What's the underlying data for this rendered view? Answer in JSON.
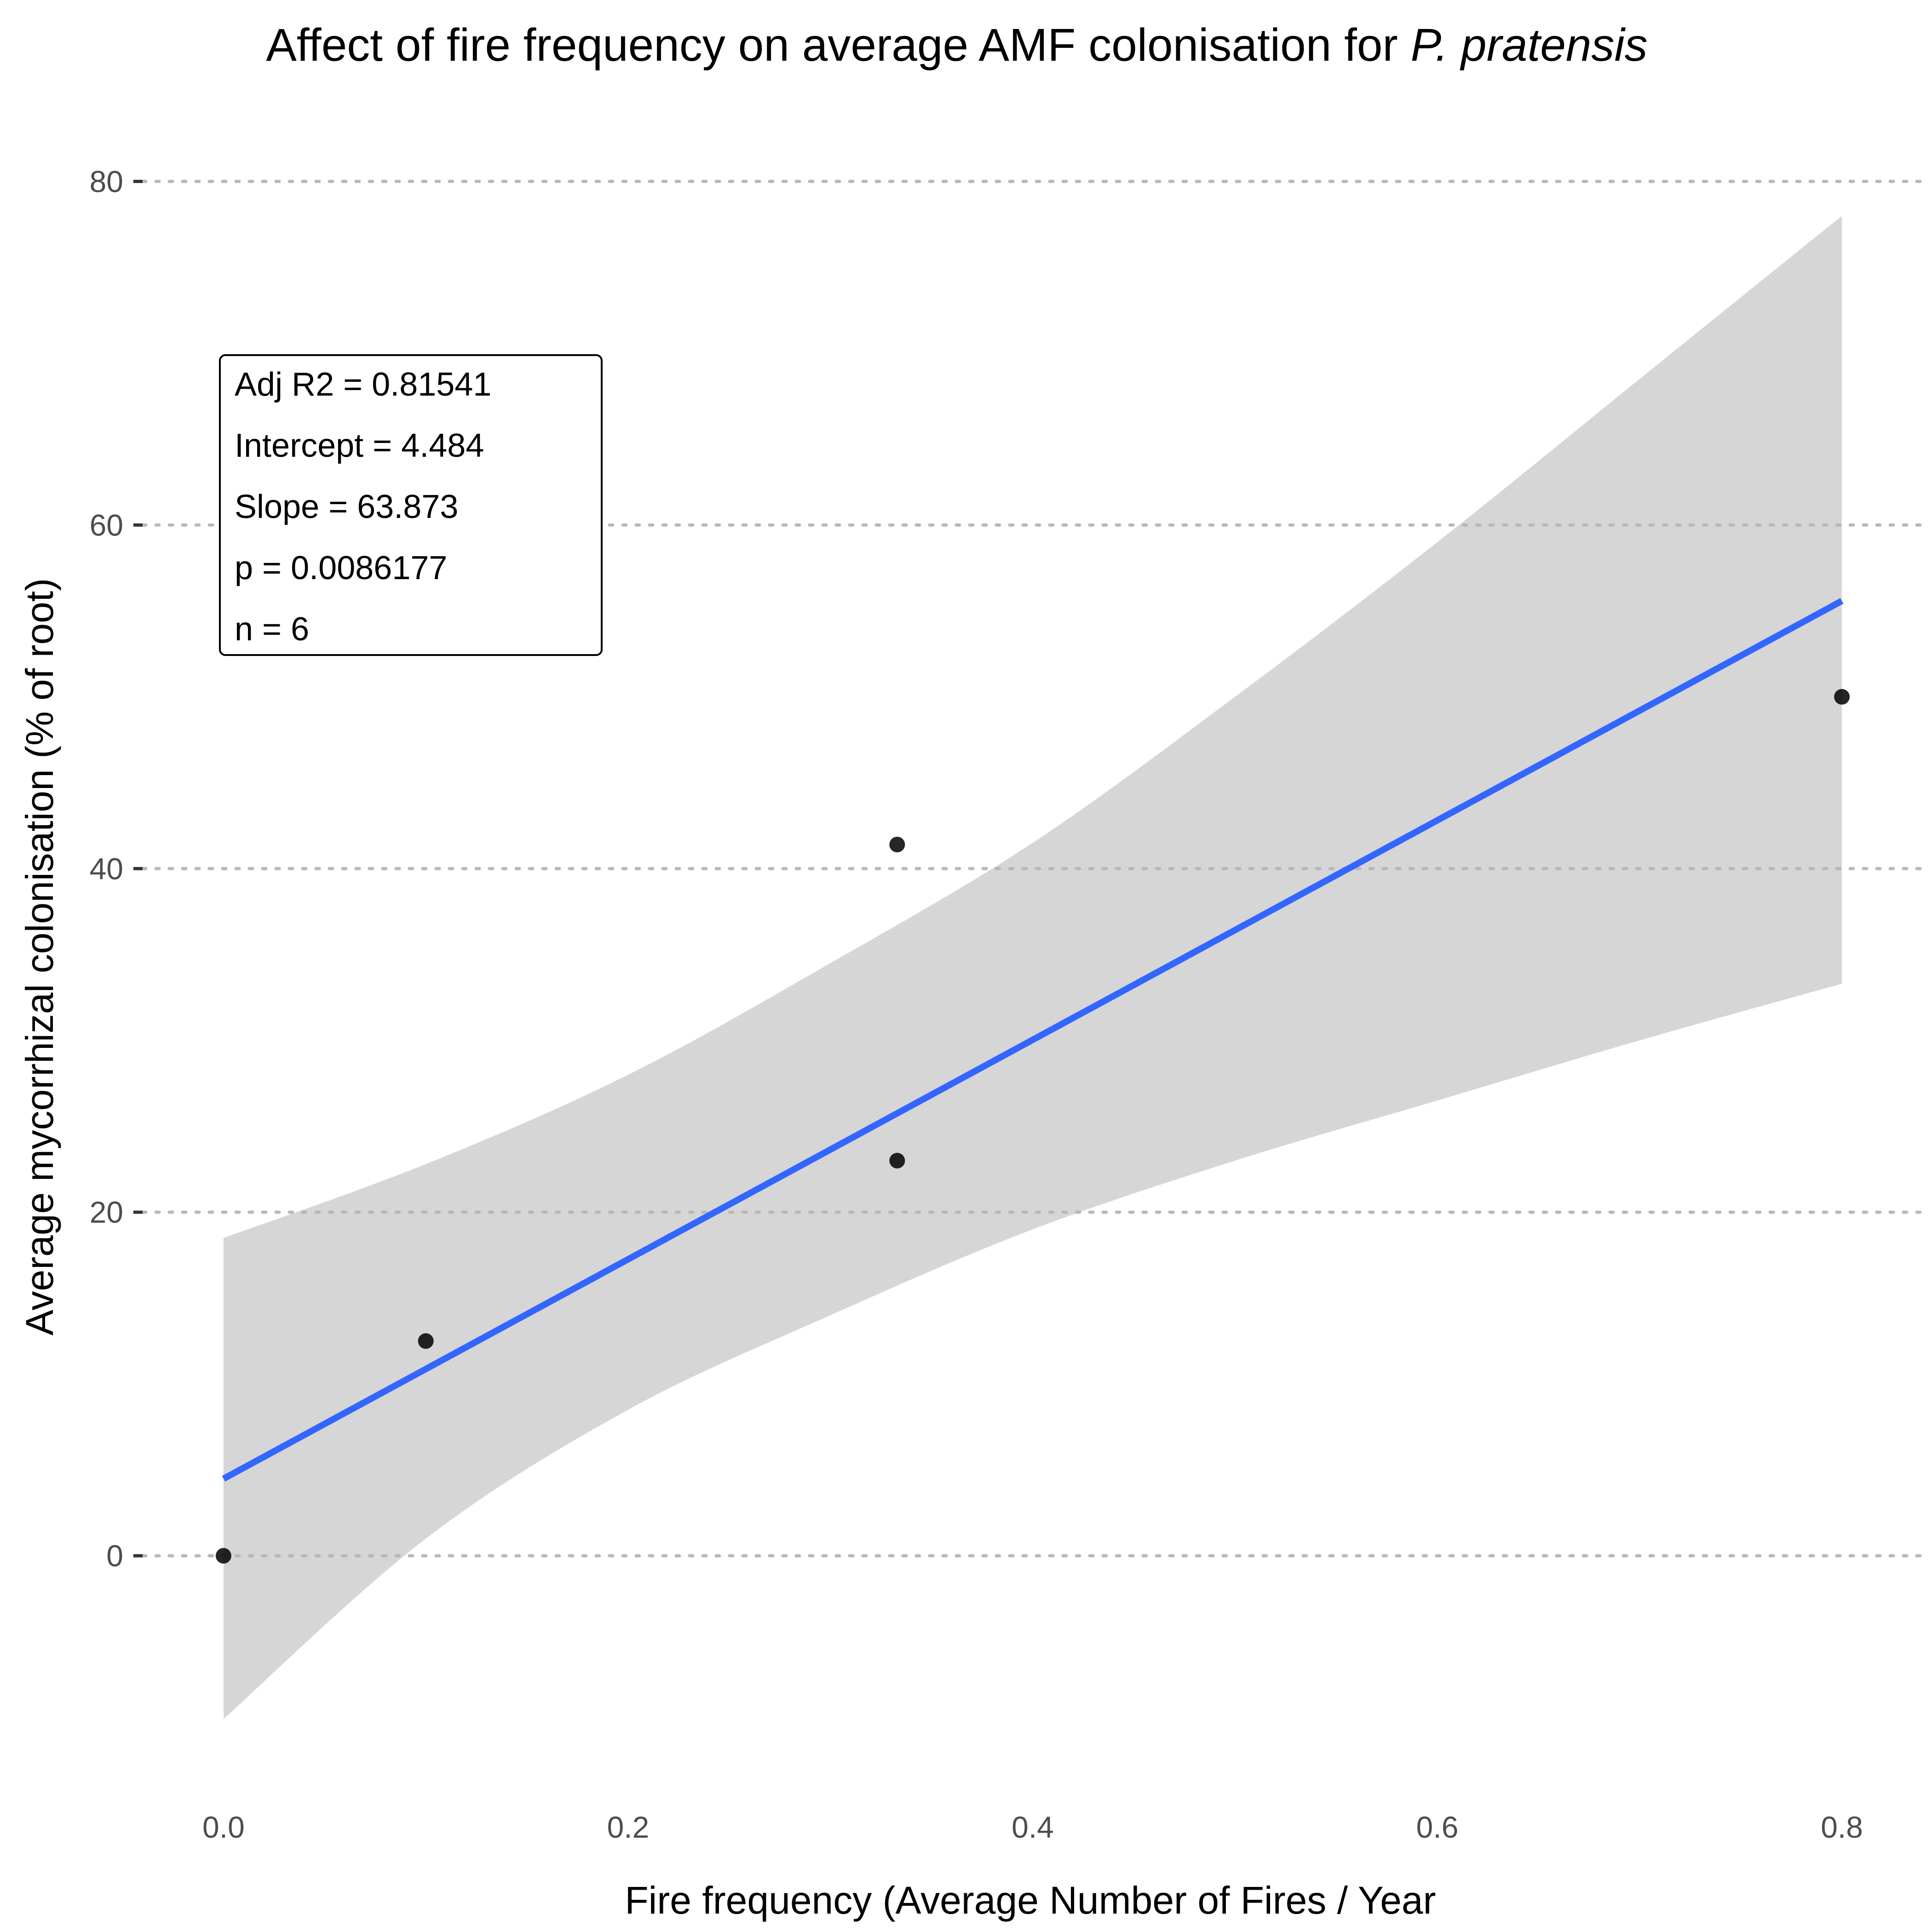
{
  "chart_data": {
    "type": "scatter",
    "title_prefix": "Affect of fire frequency on average AMF colonisation for ",
    "title_species": "P. pratensis",
    "xlabel": "Fire frequency (Average Number of Fires / Year",
    "ylabel": "Average mycorrhizal colonisation (% of root)",
    "xlim": [
      -0.04,
      0.84
    ],
    "ylim": [
      -14,
      84
    ],
    "x_ticks": [
      {
        "value": 0.0,
        "label": "0.0"
      },
      {
        "value": 0.2,
        "label": "0.2"
      },
      {
        "value": 0.4,
        "label": "0.4"
      },
      {
        "value": 0.6,
        "label": "0.6"
      },
      {
        "value": 0.8,
        "label": "0.8"
      }
    ],
    "y_ticks": [
      {
        "value": 0,
        "label": "0"
      },
      {
        "value": 20,
        "label": "20"
      },
      {
        "value": 40,
        "label": "40"
      },
      {
        "value": 60,
        "label": "60"
      },
      {
        "value": 80,
        "label": "80"
      }
    ],
    "grid": "horizontal dotted",
    "points": [
      {
        "x": 0.0,
        "y": 0.0
      },
      {
        "x": 0.1,
        "y": 12.5
      },
      {
        "x": 0.333,
        "y": 23.0
      },
      {
        "x": 0.333,
        "y": 41.4
      },
      {
        "x": 0.8,
        "y": 50.0
      }
    ],
    "fit": {
      "intercept": 4.484,
      "slope": 63.873,
      "x_range": [
        0.0,
        0.8
      ]
    },
    "confidence_band": [
      {
        "x": 0.0,
        "lower": -9.5,
        "upper": 18.5
      },
      {
        "x": 0.1,
        "lower": 1.0,
        "upper": 22.8
      },
      {
        "x": 0.2,
        "lower": 8.5,
        "upper": 28.0
      },
      {
        "x": 0.3,
        "lower": 14.0,
        "upper": 34.5
      },
      {
        "x": 0.4,
        "lower": 19.0,
        "upper": 41.5
      },
      {
        "x": 0.5,
        "lower": 23.0,
        "upper": 50.0
      },
      {
        "x": 0.6,
        "lower": 26.5,
        "upper": 59.0
      },
      {
        "x": 0.7,
        "lower": 30.0,
        "upper": 68.5
      },
      {
        "x": 0.8,
        "lower": 33.3,
        "upper": 78.0
      }
    ],
    "stats_lines": [
      "Adj R2 =  0.81541",
      "Intercept = 4.484",
      "Slope = 63.873",
      "p = 0.0086177",
      "n = 6"
    ],
    "colors": {
      "points": "#000000",
      "fit_line": "#3366ff",
      "confidence_band": "#d6d6d6",
      "grid": "#b8b8b8"
    }
  }
}
